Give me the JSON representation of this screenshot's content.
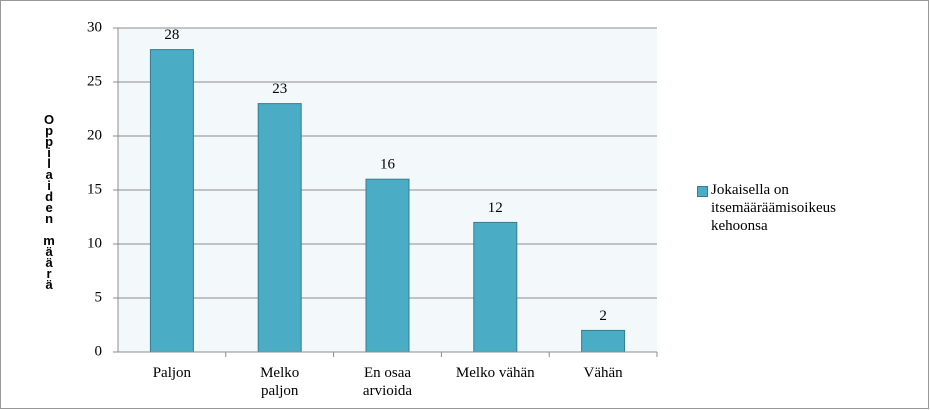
{
  "chart_data": {
    "type": "bar",
    "categories": [
      "Paljon",
      "Melko paljon",
      "En osaa arvioida",
      "Melko vähän",
      "Vähän"
    ],
    "series": [
      {
        "name": "Jokaisella on itsemääräämisoikeus kehoonsa",
        "color": "#4bacc6",
        "values": [
          28,
          23,
          16,
          12,
          2
        ]
      }
    ],
    "ylabel": "Oppilaiden määrä",
    "ylim": [
      0,
      30
    ],
    "yticks": [
      0,
      5,
      10,
      15,
      20,
      25,
      30
    ],
    "grid": true,
    "legend": "right"
  }
}
